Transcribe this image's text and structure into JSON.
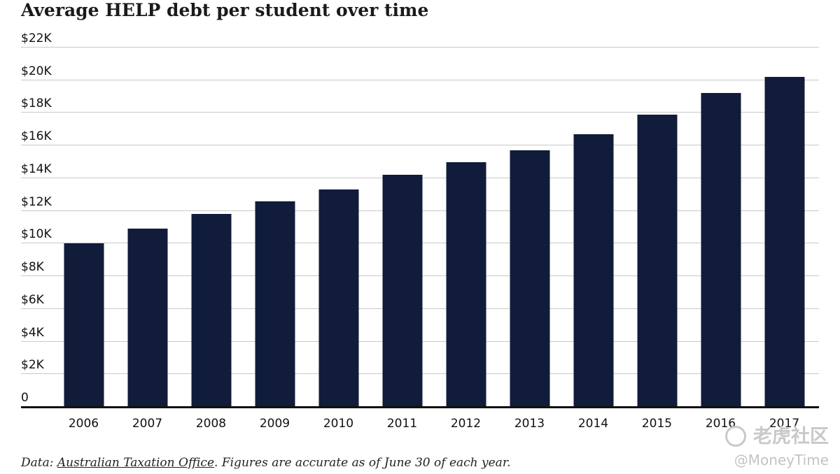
{
  "title": "Average HELP debt per student over time",
  "chart_data": {
    "type": "bar",
    "title": "Average HELP debt per student over time",
    "categories": [
      "2006",
      "2007",
      "2008",
      "2009",
      "2010",
      "2011",
      "2012",
      "2013",
      "2014",
      "2015",
      "2016",
      "2017"
    ],
    "values": [
      10000,
      10900,
      11800,
      12600,
      13300,
      14200,
      15000,
      15700,
      16700,
      17900,
      19200,
      20200
    ],
    "unit": "AUD",
    "xlabel": "",
    "ylabel": "",
    "ylim": [
      0,
      22000
    ],
    "yticks": [
      {
        "value": 0,
        "label": "0"
      },
      {
        "value": 2000,
        "label": "$2K"
      },
      {
        "value": 4000,
        "label": "$4K"
      },
      {
        "value": 6000,
        "label": "$6K"
      },
      {
        "value": 8000,
        "label": "$8K"
      },
      {
        "value": 10000,
        "label": "$10K"
      },
      {
        "value": 12000,
        "label": "$12K"
      },
      {
        "value": 14000,
        "label": "$14K"
      },
      {
        "value": 16000,
        "label": "$16K"
      },
      {
        "value": 18000,
        "label": "$18K"
      },
      {
        "value": 20000,
        "label": "$20K"
      },
      {
        "value": 22000,
        "label": "$22K"
      }
    ],
    "grid": "horizontal",
    "legend": "none",
    "bar_color": "#101c3a"
  },
  "footer": {
    "data_label": "Data: ",
    "source_link": "Australian Taxation Office",
    "note": ". Figures are accurate as of June 30 of each year."
  },
  "watermark": {
    "logo_text": "老虎社区",
    "handle": "@MoneyTime"
  },
  "colors": {
    "bar": "#101c3a",
    "gridline": "#c9c9c9",
    "baseline": "#111111",
    "tick": "#111111",
    "title": "#1a1a1a",
    "footer": "#222222",
    "watermark": "#c9c9c9"
  }
}
